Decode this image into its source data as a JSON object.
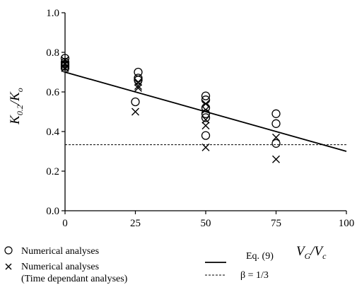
{
  "chart_data": {
    "type": "scatter",
    "xlabel": {
      "main": "V",
      "sub": "G",
      "sep": "/V",
      "sub2": "c"
    },
    "ylabel": {
      "main": "K",
      "sub": "0.2",
      "sep": "/K",
      "sub2": "o"
    },
    "xlim": [
      0,
      100
    ],
    "ylim": [
      0,
      1.0
    ],
    "x_ticks": [
      "0",
      "25",
      "50",
      "75",
      "100"
    ],
    "y_ticks": [
      "0.0",
      "0.2",
      "0.4",
      "0.6",
      "0.8",
      "1.0"
    ],
    "grid": false,
    "series": [
      {
        "name": "Numerical analyses",
        "marker": "circle",
        "points": [
          [
            0,
            0.77
          ],
          [
            0,
            0.75
          ],
          [
            0,
            0.74
          ],
          [
            0,
            0.73
          ],
          [
            0,
            0.72
          ],
          [
            25,
            0.55
          ],
          [
            26,
            0.7
          ],
          [
            26,
            0.67
          ],
          [
            26,
            0.66
          ],
          [
            50,
            0.58
          ],
          [
            50,
            0.56
          ],
          [
            50,
            0.52
          ],
          [
            50,
            0.49
          ],
          [
            50,
            0.47
          ],
          [
            50,
            0.38
          ],
          [
            75,
            0.49
          ],
          [
            75,
            0.44
          ],
          [
            75,
            0.34
          ]
        ]
      },
      {
        "name": "Numerical analyses (Time dependant analyses)",
        "marker": "x",
        "points": [
          [
            0,
            0.76
          ],
          [
            0,
            0.74
          ],
          [
            0,
            0.72
          ],
          [
            25,
            0.5
          ],
          [
            26,
            0.65
          ],
          [
            26,
            0.63
          ],
          [
            26,
            0.62
          ],
          [
            50,
            0.54
          ],
          [
            50,
            0.51
          ],
          [
            50,
            0.46
          ],
          [
            50,
            0.43
          ],
          [
            50,
            0.32
          ],
          [
            75,
            0.37
          ],
          [
            75,
            0.26
          ]
        ]
      },
      {
        "name": "Eq. (9)",
        "line": "solid",
        "x": [
          0,
          100
        ],
        "y": [
          0.7,
          0.3
        ]
      },
      {
        "name": "β = 1/3",
        "line": "dashed",
        "x": [
          0,
          100
        ],
        "y": [
          0.3333,
          0.3333
        ]
      }
    ],
    "legend": {
      "placement": "bottom",
      "items": [
        {
          "marker": "circle",
          "label": "Numerical analyses"
        },
        {
          "marker": "x",
          "label_line1": "Numerical analyses",
          "label_line2": "(Time dependant analyses)"
        },
        {
          "line": "solid",
          "label": "Eq. (9)"
        },
        {
          "line": "dashed",
          "label": "β = 1/3"
        }
      ]
    }
  }
}
